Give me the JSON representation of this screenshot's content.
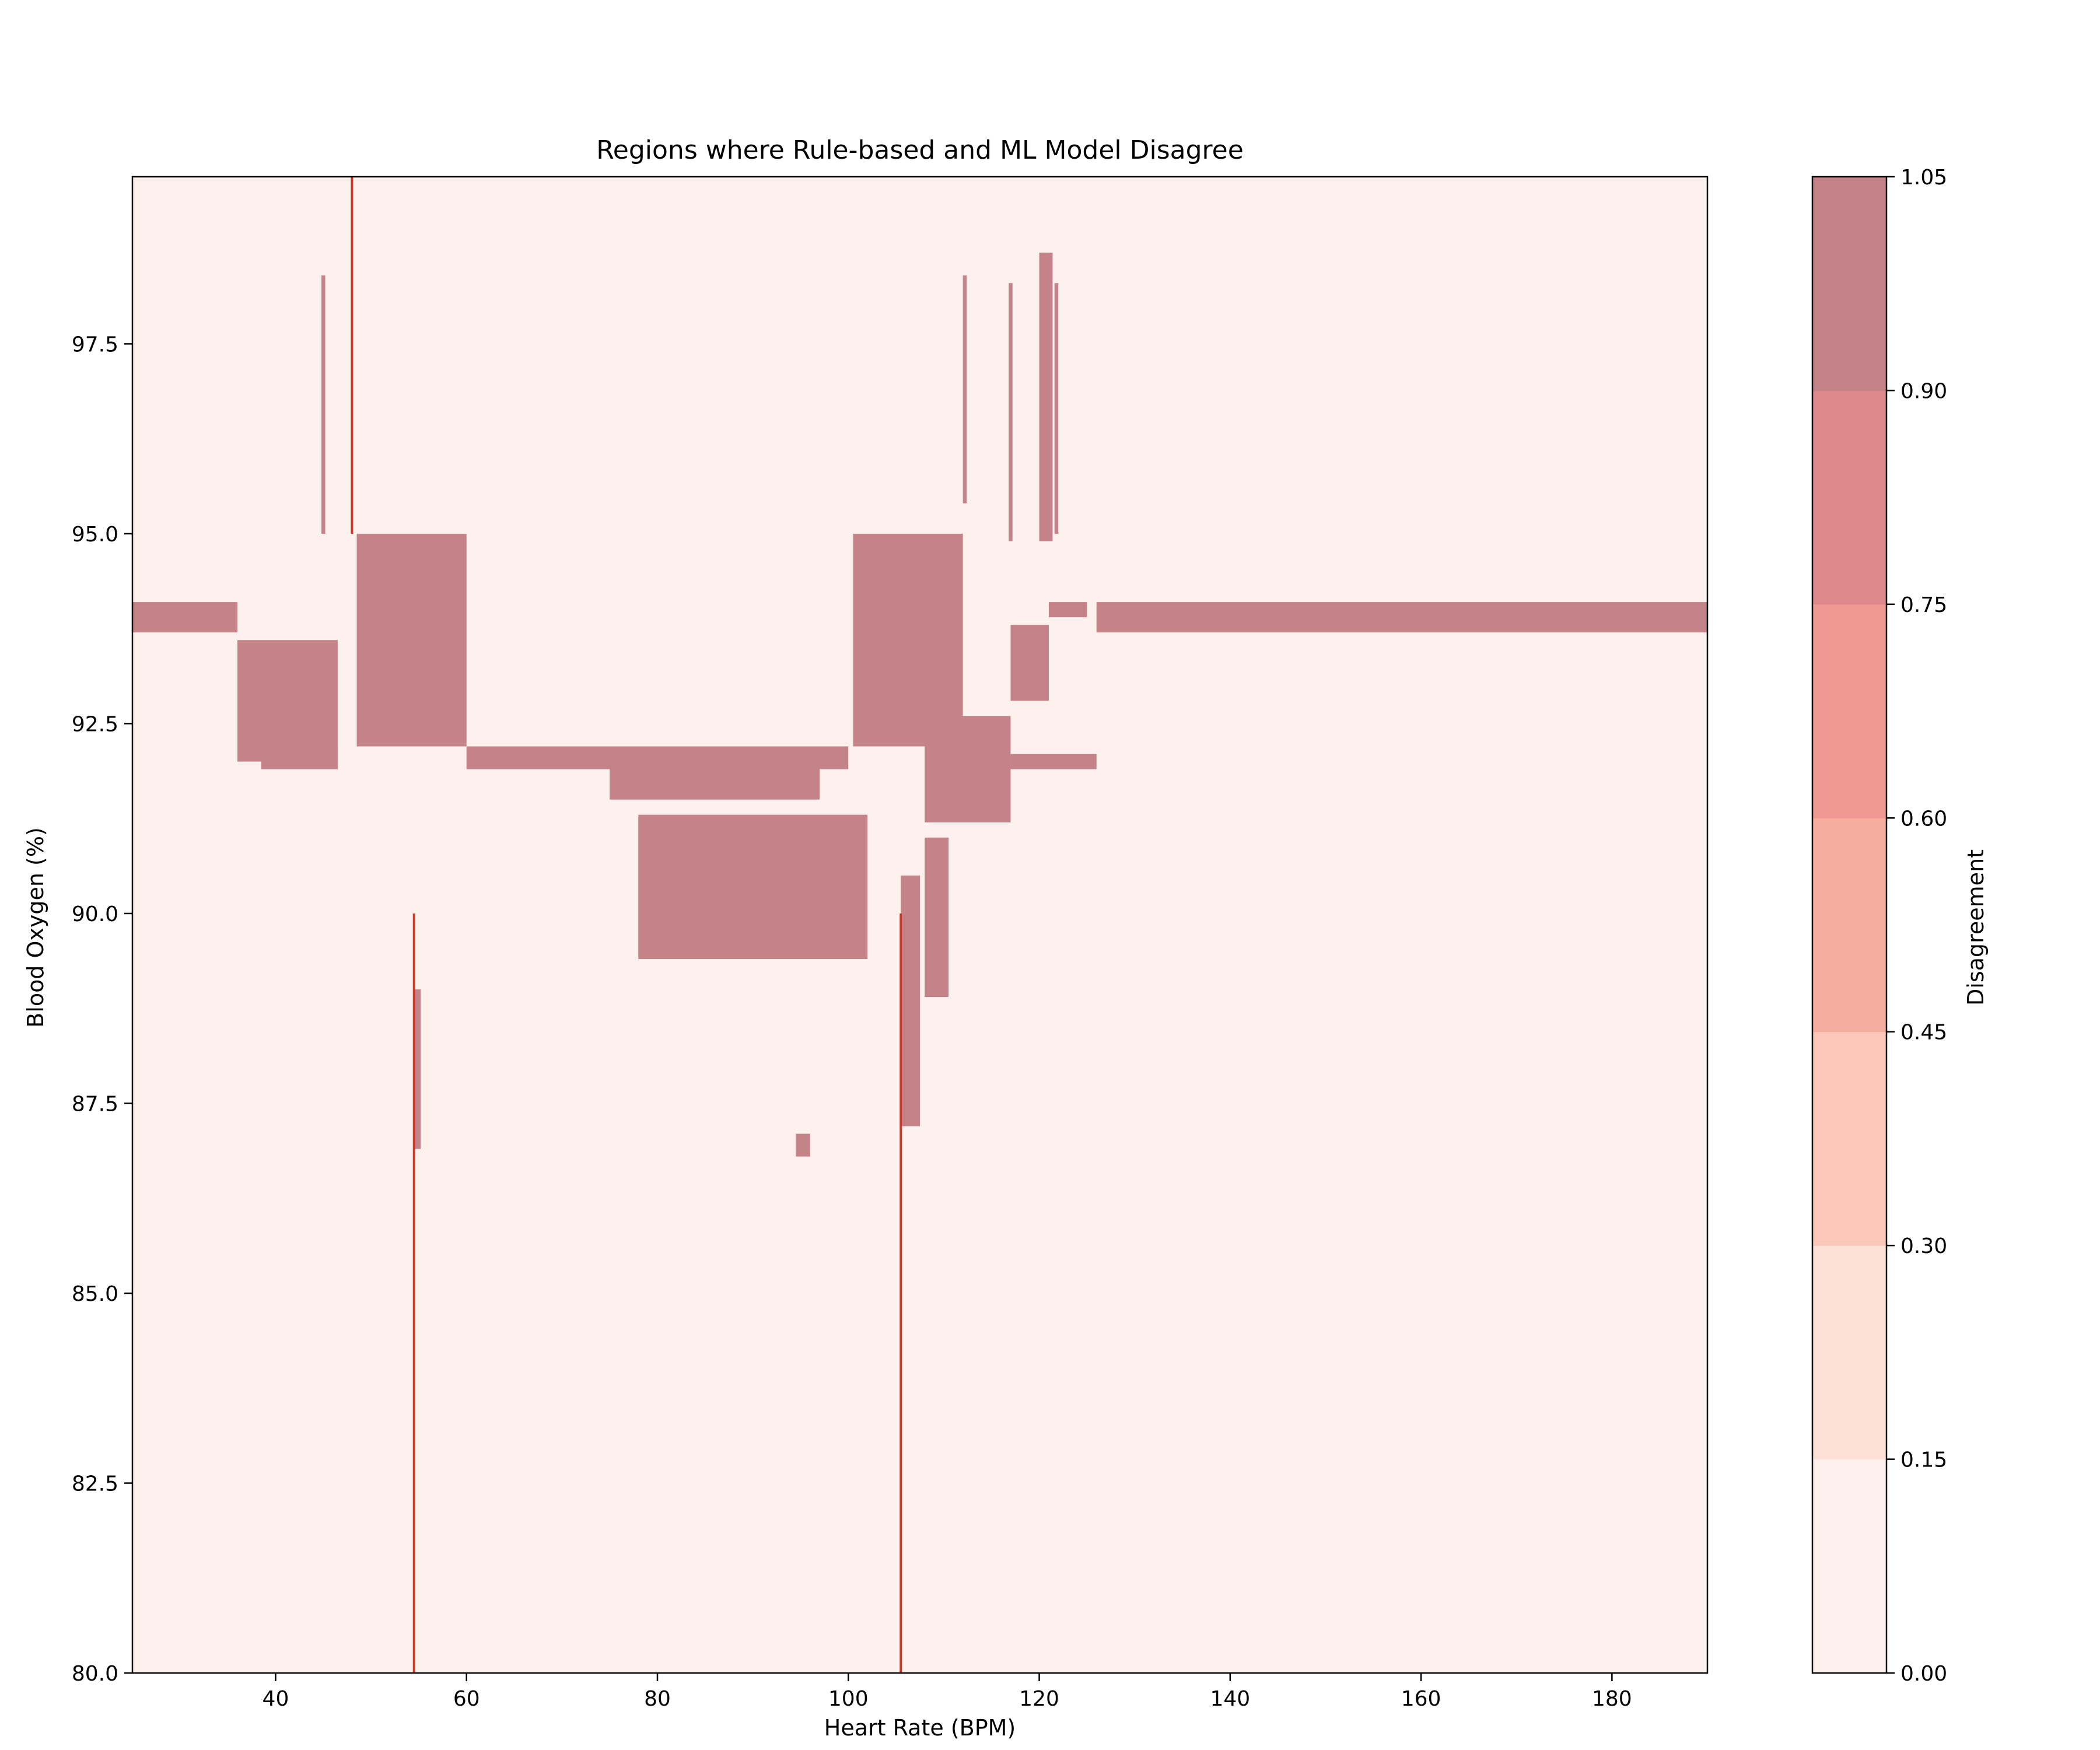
{
  "chart_data": {
    "type": "heatmap",
    "title": "Regions where Rule-based and ML Model Disagree",
    "xlabel": "Heart Rate (BPM)",
    "ylabel": "Blood Oxygen (%)",
    "xlim": [
      25,
      190
    ],
    "ylim": [
      80,
      99.7
    ],
    "x_ticks": [
      40,
      60,
      80,
      100,
      120,
      140,
      160,
      180
    ],
    "y_ticks": [
      80.0,
      82.5,
      85.0,
      87.5,
      90.0,
      92.5,
      95.0,
      97.5
    ],
    "y_tick_labels": [
      "80.0",
      "82.5",
      "85.0",
      "87.5",
      "90.0",
      "92.5",
      "95.0",
      "97.5"
    ],
    "background_value": 0.0,
    "colorbar": {
      "label": "Disagreement",
      "levels": [
        0.0,
        0.15,
        0.3,
        0.45,
        0.6,
        0.75,
        0.9,
        1.05
      ],
      "tick_labels": [
        "0.00",
        "0.15",
        "0.30",
        "0.45",
        "0.60",
        "0.75",
        "0.90",
        "1.05"
      ],
      "colors": [
        "#fdf1ee",
        "#fce0d7",
        "#fac7b8",
        "#f6ad9d",
        "#ef9891",
        "#de888b",
        "#c48289"
      ]
    },
    "disagreement_regions": [
      {
        "name": "band-low-hr",
        "x": [
          25,
          36
        ],
        "y": [
          93.7,
          94.1
        ],
        "value": 1
      },
      {
        "name": "band-high-hr",
        "x": [
          126,
          190
        ],
        "y": [
          93.7,
          94.1
        ],
        "value": 1
      },
      {
        "name": "band-120-126",
        "x": [
          121,
          125
        ],
        "y": [
          93.9,
          94.1
        ],
        "value": 1
      },
      {
        "name": "band-92",
        "x": [
          60,
          100
        ],
        "y": [
          91.9,
          92.2
        ],
        "value": 1
      },
      {
        "name": "band-92-left",
        "x": [
          38.5,
          46.5
        ],
        "y": [
          91.9,
          92.2
        ],
        "value": 1
      },
      {
        "name": "band-92-right",
        "x": [
          117,
          126
        ],
        "y": [
          91.9,
          92.1
        ],
        "value": 1
      },
      {
        "name": "wedge-50-60",
        "x": [
          48.5,
          60
        ],
        "y": [
          92.2,
          95.0
        ],
        "value": 1
      },
      {
        "name": "stair-38-46",
        "x": [
          36,
          46.5
        ],
        "y": [
          92.0,
          93.6
        ],
        "value": 1
      },
      {
        "name": "block-78-102",
        "x": [
          78,
          102
        ],
        "y": [
          89.4,
          91.3
        ],
        "value": 1
      },
      {
        "name": "block-76-97",
        "x": [
          75,
          97
        ],
        "y": [
          91.5,
          92.0
        ],
        "value": 1
      },
      {
        "name": "wedge-100-112",
        "x": [
          100.5,
          112
        ],
        "y": [
          92.2,
          95.0
        ],
        "value": 1
      },
      {
        "name": "stair-108-117",
        "x": [
          108,
          117
        ],
        "y": [
          91.2,
          92.6
        ],
        "value": 1
      },
      {
        "name": "column-104-107",
        "x": [
          105.5,
          107.5
        ],
        "y": [
          87.2,
          90.5
        ],
        "value": 1
      },
      {
        "name": "column-108-110",
        "x": [
          108,
          110.5
        ],
        "y": [
          88.9,
          91.0
        ],
        "value": 1
      },
      {
        "name": "stair-117-121",
        "x": [
          117,
          121
        ],
        "y": [
          92.8,
          93.8
        ],
        "value": 1
      },
      {
        "name": "spike-45",
        "x": [
          44.8,
          45.2
        ],
        "y": [
          95.0,
          98.4
        ],
        "value": 1
      },
      {
        "name": "spike-112",
        "x": [
          112,
          112.4
        ],
        "y": [
          95.4,
          98.4
        ],
        "value": 1
      },
      {
        "name": "spike-117",
        "x": [
          116.8,
          117.2
        ],
        "y": [
          94.9,
          98.3
        ],
        "value": 1
      },
      {
        "name": "spike-120",
        "x": [
          120,
          121.4
        ],
        "y": [
          94.9,
          98.7
        ],
        "value": 1
      },
      {
        "name": "spike-121-8",
        "x": [
          121.6,
          122
        ],
        "y": [
          95.0,
          98.3
        ],
        "value": 1
      },
      {
        "name": "col-55",
        "x": [
          54.4,
          55.2
        ],
        "y": [
          86.9,
          89.0
        ],
        "value": 1
      },
      {
        "name": "dot-95",
        "x": [
          94.5,
          96
        ],
        "y": [
          86.8,
          87.1
        ],
        "value": 1
      }
    ],
    "boundary_lines": [
      {
        "name": "line-48",
        "x": 48,
        "y": [
          95.0,
          99.7
        ]
      },
      {
        "name": "line-54",
        "x": 54.5,
        "y": [
          80.0,
          90.0
        ]
      },
      {
        "name": "line-105",
        "x": 105.5,
        "y": [
          80.0,
          90.0
        ]
      }
    ]
  }
}
